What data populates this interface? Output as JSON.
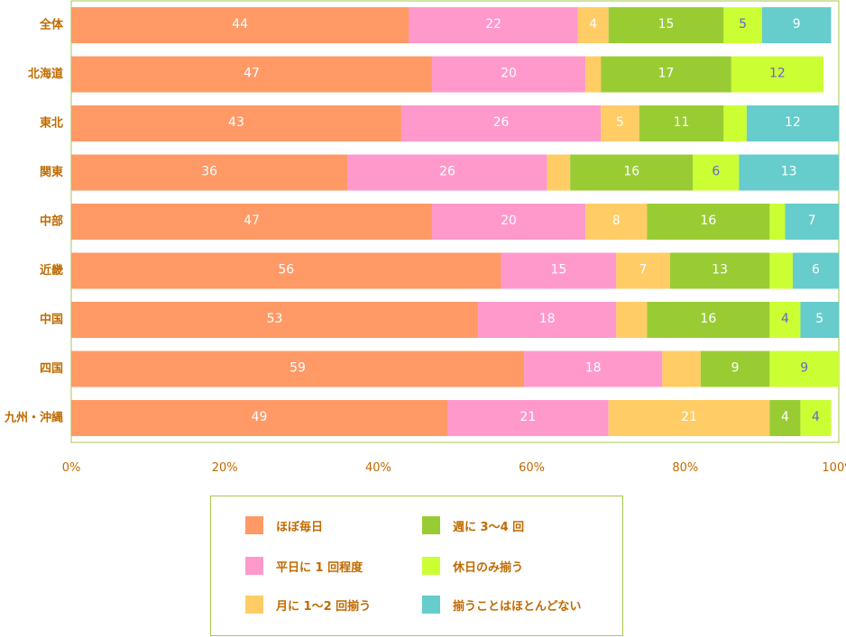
{
  "chart_data": {
    "type": "bar",
    "orientation": "horizontal",
    "stacked": true,
    "categories": [
      "全体",
      "北海道",
      "東北",
      "関東",
      "中部",
      "近畿",
      "中国",
      "四国",
      "九州・沖縄"
    ],
    "series": [
      {
        "name": "ほぼ毎日",
        "color": "#ff9966",
        "label_color": "#ffffff",
        "values": [
          44,
          47,
          43,
          36,
          47,
          56,
          53,
          59,
          49
        ],
        "labels": [
          "44",
          "47",
          "43",
          "36",
          "47",
          "56",
          "53",
          "59",
          "49"
        ]
      },
      {
        "name": "平日に 1 回程度",
        "color": "#ff99cc",
        "label_color": "#ffffff",
        "values": [
          22,
          20,
          26,
          26,
          20,
          15,
          18,
          18,
          21
        ],
        "labels": [
          "22",
          "20",
          "26",
          "26",
          "20",
          "15",
          "18",
          "18",
          "21"
        ]
      },
      {
        "name": "月に 1～2 回揃う",
        "color": "#ffcc66",
        "label_color": "#ffffff",
        "values": [
          4,
          2,
          5,
          3,
          8,
          7,
          4,
          5,
          21
        ],
        "labels": [
          "4",
          "",
          "5",
          "",
          "8",
          "7",
          "",
          "",
          "21"
        ]
      },
      {
        "name": "週に 3～4 回",
        "color": "#99cc33",
        "label_color": "#ffffff",
        "values": [
          15,
          17,
          11,
          16,
          16,
          13,
          16,
          9,
          4
        ],
        "labels": [
          "15",
          "17",
          "11",
          "16",
          "16",
          "13",
          "16",
          "9",
          "4"
        ]
      },
      {
        "name": "休日のみ揃う",
        "color": "#ccff33",
        "label_color": "#6666cc",
        "values": [
          5,
          12,
          3,
          6,
          2,
          3,
          4,
          9,
          4
        ],
        "labels": [
          "5",
          "12",
          "",
          "6",
          "",
          "",
          "4",
          "9",
          "4"
        ]
      },
      {
        "name": "揃うことはほとんどない",
        "color": "#66cccc",
        "label_color": "#ffffff",
        "values": [
          9,
          0,
          12,
          13,
          7,
          6,
          5,
          0,
          0
        ],
        "labels": [
          "9",
          "",
          "12",
          "13",
          "7",
          "6",
          "5",
          "",
          ""
        ]
      }
    ],
    "xlim": [
      0,
      100
    ],
    "x_ticks": [
      "0%",
      "20%",
      "40%",
      "60%",
      "80%",
      "100%"
    ],
    "x_tick_values": [
      0,
      20,
      40,
      60,
      80,
      100
    ],
    "legend_position": "bottom",
    "grid": false
  },
  "legend": {
    "items": [
      {
        "label": "ほぼ毎日",
        "color": "#ff9966"
      },
      {
        "label": "週に 3～4 回",
        "color": "#99cc33"
      },
      {
        "label": "平日に 1 回程度",
        "color": "#ff99cc"
      },
      {
        "label": "休日のみ揃う",
        "color": "#ccff33"
      },
      {
        "label": "月に 1～2 回揃う",
        "color": "#ffcc66"
      },
      {
        "label": "揃うことはほとんどない",
        "color": "#66cccc"
      }
    ]
  }
}
